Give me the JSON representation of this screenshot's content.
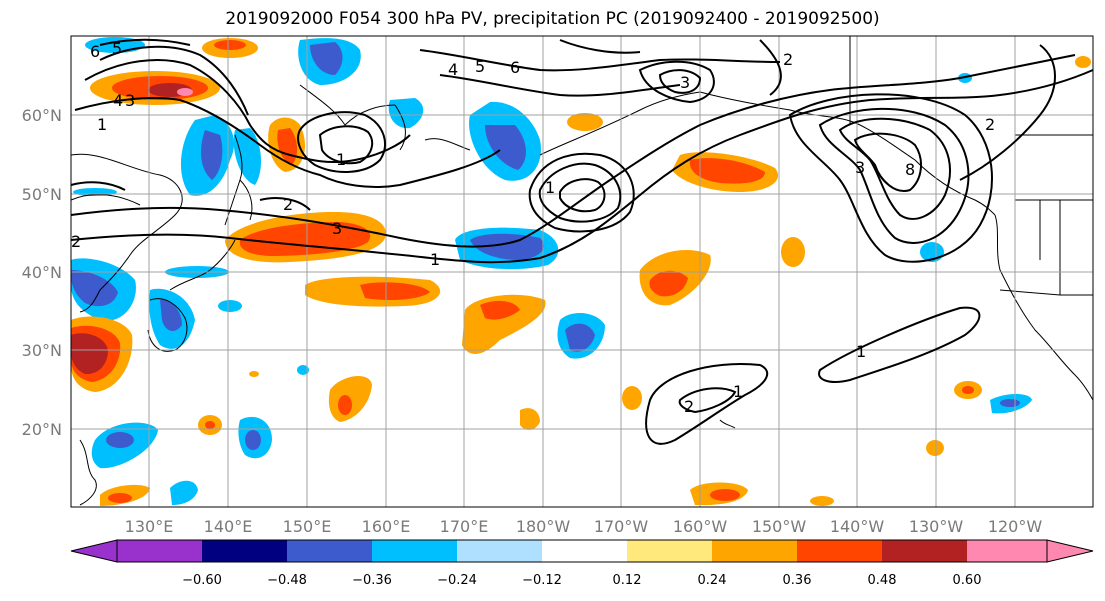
{
  "title": "2019092000 F054 300 hPa PV, precipitation PC (2019092400 - 2019092500)",
  "lat_labels": [
    "60°N",
    "50°N",
    "40°N",
    "30°N",
    "20°N"
  ],
  "lon_labels": [
    "130°E",
    "140°E",
    "150°E",
    "160°E",
    "170°E",
    "180°W",
    "170°W",
    "160°W",
    "150°W",
    "140°W",
    "130°W",
    "120°W"
  ],
  "colorbar": {
    "tick_labels": [
      "−0.60",
      "−0.48",
      "−0.36",
      "−0.24",
      "−0.12",
      "0.12",
      "0.24",
      "0.36",
      "0.48",
      "0.60"
    ],
    "colors": [
      "#9932cc",
      "#000080",
      "#3d5bcc",
      "#00bfff",
      "#b0e0ff",
      "#ffffff",
      "#ffe87c",
      "#ffa500",
      "#ff4500",
      "#b22222",
      "#ff88b0"
    ]
  },
  "contour_labels": [
    "6",
    "5",
    "4",
    "3",
    "1",
    "2",
    "1",
    "2",
    "3",
    "1",
    "4",
    "5",
    "6",
    "3",
    "2",
    "3",
    "1",
    "2",
    "8",
    "1",
    "2",
    "1"
  ],
  "colors": {
    "grid": "#a0a0a0",
    "label_gray": "#7a7a7a"
  }
}
